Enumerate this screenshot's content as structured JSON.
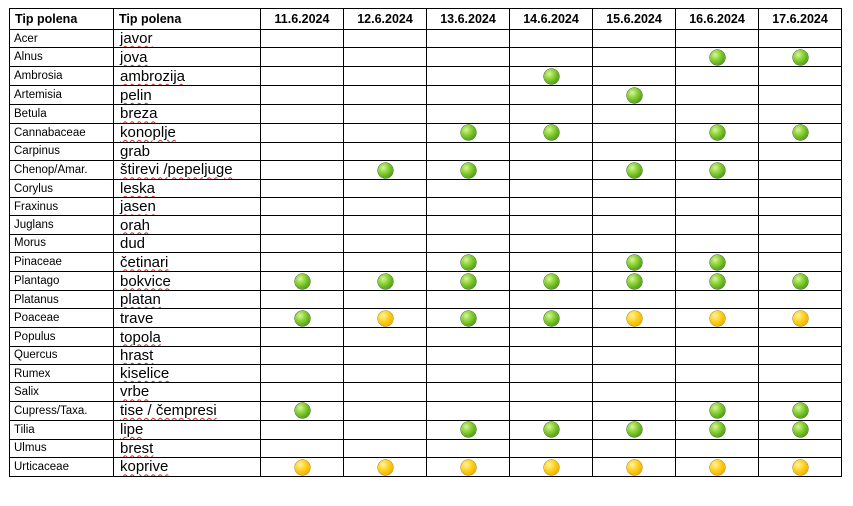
{
  "header": {
    "col_latin": "Tip polena",
    "col_local": "Tip polena",
    "dates": [
      "11.6.2024",
      "12.6.2024",
      "13.6.2024",
      "14.6.2024",
      "15.6.2024",
      "16.6.2024",
      "17.6.2024"
    ]
  },
  "legend_colors": {
    "green": "#6cbf26",
    "yellow": "#ffcc00"
  },
  "rows": [
    {
      "latin": "Acer",
      "local": "javor",
      "levels": [
        "",
        "",
        "",
        "",
        "",
        "",
        ""
      ]
    },
    {
      "latin": "Alnus",
      "local": "jova",
      "levels": [
        "",
        "",
        "",
        "",
        "",
        "green",
        "green"
      ]
    },
    {
      "latin": "Ambrosia",
      "local": "ambrozija",
      "levels": [
        "",
        "",
        "",
        "green",
        "",
        "",
        ""
      ]
    },
    {
      "latin": "Artemisia",
      "local": "pelin",
      "levels": [
        "",
        "",
        "",
        "",
        "green",
        "",
        ""
      ]
    },
    {
      "latin": "Betula",
      "local": "breza",
      "levels": [
        "",
        "",
        "",
        "",
        "",
        "",
        ""
      ]
    },
    {
      "latin": "Cannabaceae",
      "local": "konoplje",
      "levels": [
        "",
        "",
        "green",
        "green",
        "",
        "green",
        "green"
      ]
    },
    {
      "latin": "Carpinus",
      "local": "grab",
      "levels": [
        "",
        "",
        "",
        "",
        "",
        "",
        ""
      ]
    },
    {
      "latin": "Chenop/Amar.",
      "local": "štirevi /pepeljuge",
      "levels": [
        "",
        "green",
        "green",
        "",
        "green",
        "green",
        ""
      ]
    },
    {
      "latin": "Corylus",
      "local": "leska",
      "levels": [
        "",
        "",
        "",
        "",
        "",
        "",
        ""
      ]
    },
    {
      "latin": "Fraxinus",
      "local": "jasen",
      "levels": [
        "",
        "",
        "",
        "",
        "",
        "",
        ""
      ]
    },
    {
      "latin": "Juglans",
      "local": "orah",
      "levels": [
        "",
        "",
        "",
        "",
        "",
        "",
        ""
      ]
    },
    {
      "latin": "Morus",
      "local": "dud",
      "levels": [
        "",
        "",
        "",
        "",
        "",
        "",
        ""
      ]
    },
    {
      "latin": "Pinaceae",
      "local": "četinari",
      "levels": [
        "",
        "",
        "green",
        "",
        "green",
        "green",
        ""
      ]
    },
    {
      "latin": "Plantago",
      "local": "bokvice",
      "levels": [
        "green",
        "green",
        "green",
        "green",
        "green",
        "green",
        "green"
      ]
    },
    {
      "latin": "Platanus",
      "local": "platan",
      "levels": [
        "",
        "",
        "",
        "",
        "",
        "",
        ""
      ]
    },
    {
      "latin": "Poaceae",
      "local": "trave",
      "levels": [
        "green",
        "yellow",
        "green",
        "green",
        "yellow",
        "yellow",
        "yellow"
      ]
    },
    {
      "latin": "Populus",
      "local": "topola",
      "levels": [
        "",
        "",
        "",
        "",
        "",
        "",
        ""
      ]
    },
    {
      "latin": "Quercus",
      "local": "hrast",
      "levels": [
        "",
        "",
        "",
        "",
        "",
        "",
        ""
      ]
    },
    {
      "latin": "Rumex",
      "local": "kiselice",
      "levels": [
        "",
        "",
        "",
        "",
        "",
        "",
        ""
      ]
    },
    {
      "latin": "Salix",
      "local": "vrbe",
      "levels": [
        "",
        "",
        "",
        "",
        "",
        "",
        ""
      ]
    },
    {
      "latin": "Cupress/Taxa.",
      "local": "tise / čempresi",
      "levels": [
        "green",
        "",
        "",
        "",
        "",
        "green",
        "green"
      ]
    },
    {
      "latin": "Tilia",
      "local": "lipe",
      "levels": [
        "",
        "",
        "green",
        "green",
        "green",
        "green",
        "green"
      ]
    },
    {
      "latin": "Ulmus",
      "local": "brest",
      "levels": [
        "",
        "",
        "",
        "",
        "",
        "",
        ""
      ]
    },
    {
      "latin": "Urticaceae",
      "local": "koprive",
      "levels": [
        "yellow",
        "yellow",
        "yellow",
        "yellow",
        "yellow",
        "yellow",
        "yellow"
      ]
    }
  ]
}
